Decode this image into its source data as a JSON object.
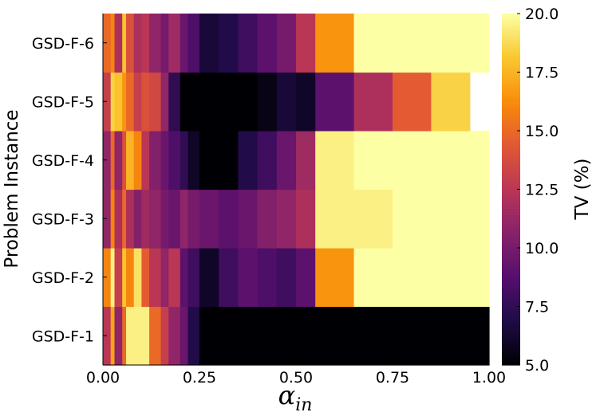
{
  "chart_data": {
    "type": "heatmap",
    "xlabel": "α",
    "xlabel_sub": "in",
    "ylabel": "Problem Instance",
    "colorbar_label": "TV (%)",
    "colormap": "inferno",
    "color_range": [
      5.0,
      20.0
    ],
    "xlim": [
      0.0,
      1.0
    ],
    "x_ticks": [
      "0.00",
      "0.25",
      "0.50",
      "0.75",
      "1.00"
    ],
    "colorbar_ticks": [
      "5.0",
      "7.5",
      "10.0",
      "12.5",
      "15.0",
      "17.5",
      "20.0"
    ],
    "x_edges": [
      0.0,
      0.02,
      0.03,
      0.05,
      0.06,
      0.08,
      0.1,
      0.12,
      0.15,
      0.17,
      0.2,
      0.22,
      0.25,
      0.3,
      0.35,
      0.4,
      0.45,
      0.5,
      0.55,
      0.65,
      0.75,
      0.85,
      0.95,
      1.0
    ],
    "rows": [
      "GSD-F-1",
      "GSD-F-2",
      "GSD-F-3",
      "GSD-F-4",
      "GSD-F-5",
      "GSD-F-6"
    ],
    "values": [
      [
        12.5,
        17,
        11,
        15,
        19.5,
        19.5,
        19.5,
        15,
        13,
        11,
        9.5,
        7,
        5,
        5,
        5,
        5,
        5,
        5,
        5,
        5,
        5,
        5,
        5
      ],
      [
        16,
        19.5,
        13,
        18,
        16,
        19,
        14.5,
        12.5,
        11,
        12.5,
        9,
        8,
        6,
        8,
        9,
        8.5,
        8,
        9,
        16.5,
        20,
        20,
        20,
        20
      ],
      [
        11,
        16,
        12,
        15,
        12,
        10.5,
        11.5,
        11,
        10,
        9.5,
        11,
        10,
        9.5,
        9,
        9.5,
        10.5,
        11,
        12,
        19.5,
        19.5,
        20,
        20,
        20
      ],
      [
        11,
        15,
        11,
        14,
        17.5,
        16,
        12.5,
        10.5,
        9.5,
        8.5,
        7.5,
        6,
        5,
        5,
        7,
        8,
        9.5,
        11.5,
        19.5,
        20,
        20,
        20,
        20
      ],
      [
        13,
        18.5,
        18,
        16.5,
        15,
        13,
        14,
        13.5,
        11,
        7.5,
        5,
        5,
        5,
        5,
        5,
        5.5,
        6.5,
        6,
        9,
        12,
        14.5,
        18.5,
        null
      ],
      [
        15,
        16,
        12,
        18,
        14,
        12,
        12.5,
        11,
        10,
        11.5,
        9.5,
        8.5,
        6.5,
        7,
        8,
        9,
        10,
        12.5,
        16.5,
        20,
        20,
        20,
        20
      ]
    ]
  }
}
